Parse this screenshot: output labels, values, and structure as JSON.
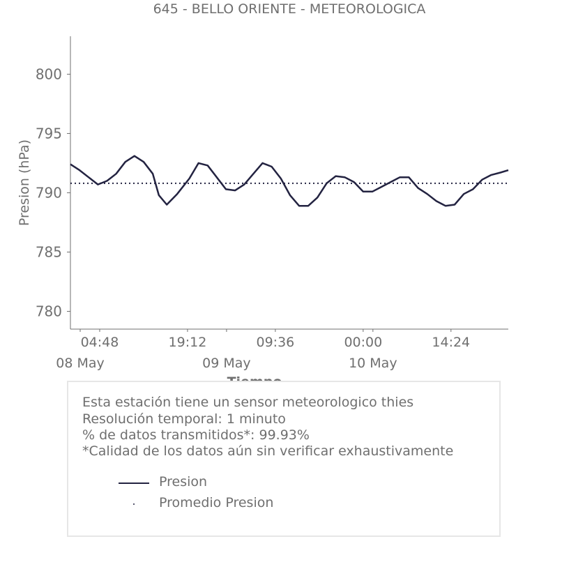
{
  "chart_data": {
    "type": "line",
    "title": "645 - BELLO ORIENTE - METEOROLOGICA",
    "xlabel": "Tiempo",
    "ylabel": "Presion (hPa)",
    "ylim": [
      778.5,
      803.2
    ],
    "yticks": [
      780,
      785,
      790,
      795,
      800
    ],
    "x_range_hours": [
      0,
      71.8
    ],
    "xticks": [
      {
        "label": "04:48",
        "hours": 4.8
      },
      {
        "label": "19:12",
        "hours": 19.2
      },
      {
        "label": "09:36",
        "hours": 33.6
      },
      {
        "label": "00:00",
        "hours": 48.0
      },
      {
        "label": "14:24",
        "hours": 62.4
      }
    ],
    "day_ticks": [
      {
        "label": "08 May",
        "hours": 1.6
      },
      {
        "label": "09 May",
        "hours": 25.6
      },
      {
        "label": "10 May",
        "hours": 49.6
      }
    ],
    "series": [
      {
        "name": "Presion",
        "color": "#232341",
        "style": "solid",
        "points": [
          [
            0.0,
            792.4
          ],
          [
            1.5,
            791.9
          ],
          [
            3.0,
            791.3
          ],
          [
            4.5,
            790.7
          ],
          [
            6.0,
            791.0
          ],
          [
            7.5,
            791.6
          ],
          [
            9.0,
            792.6
          ],
          [
            10.5,
            793.1
          ],
          [
            12.0,
            792.6
          ],
          [
            13.5,
            791.6
          ],
          [
            14.5,
            789.8
          ],
          [
            15.8,
            789.0
          ],
          [
            17.5,
            789.9
          ],
          [
            19.5,
            791.2
          ],
          [
            21.0,
            792.5
          ],
          [
            22.5,
            792.3
          ],
          [
            24.0,
            791.3
          ],
          [
            25.5,
            790.3
          ],
          [
            27.0,
            790.2
          ],
          [
            28.5,
            790.7
          ],
          [
            30.0,
            791.6
          ],
          [
            31.5,
            792.5
          ],
          [
            33.0,
            792.2
          ],
          [
            34.5,
            791.2
          ],
          [
            36.0,
            789.8
          ],
          [
            37.5,
            788.9
          ],
          [
            39.0,
            788.9
          ],
          [
            40.5,
            789.6
          ],
          [
            42.0,
            790.8
          ],
          [
            43.5,
            791.4
          ],
          [
            45.0,
            791.3
          ],
          [
            46.5,
            790.9
          ],
          [
            48.0,
            790.1
          ],
          [
            49.5,
            790.1
          ],
          [
            51.0,
            790.5
          ],
          [
            52.5,
            790.9
          ],
          [
            54.0,
            791.3
          ],
          [
            55.5,
            791.3
          ],
          [
            57.0,
            790.4
          ],
          [
            58.5,
            789.9
          ],
          [
            60.0,
            789.3
          ],
          [
            61.5,
            788.9
          ],
          [
            63.0,
            789.0
          ],
          [
            64.5,
            789.9
          ],
          [
            66.0,
            790.3
          ],
          [
            67.5,
            791.1
          ],
          [
            69.0,
            791.5
          ],
          [
            70.5,
            791.7
          ],
          [
            71.8,
            791.9
          ]
        ]
      },
      {
        "name": "Promedio Presion",
        "color": "#232341",
        "style": "dotted",
        "points": [
          [
            0.0,
            790.8
          ],
          [
            71.8,
            790.8
          ]
        ]
      }
    ],
    "legend": {
      "placement": "bottom",
      "entries": [
        "Presion",
        "Promedio Presion"
      ]
    }
  },
  "info": {
    "lines": [
      "Esta estación tiene un sensor meteorologico thies",
      "Resolución temporal: 1 minuto",
      "% de datos transmitidos*: 99.93%",
      "*Calidad de los datos aún sin verificar exhaustivamente"
    ]
  }
}
